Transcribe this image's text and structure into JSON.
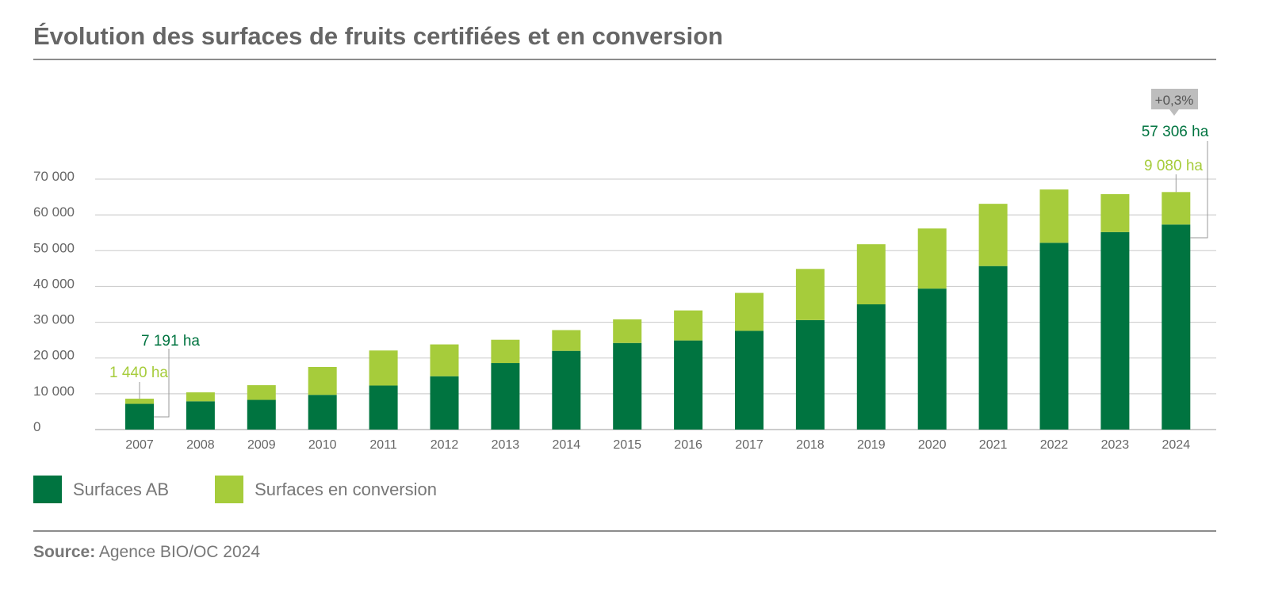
{
  "title": "Évolution des surfaces de fruits certifiées et en conversion",
  "colors": {
    "ab": "#007440",
    "conversion": "#a6cc3b",
    "grid": "#c8c8c8",
    "axis_text": "#666666",
    "badge_bg": "#bdbdbd",
    "badge_text": "#555555"
  },
  "chart_data": {
    "type": "bar",
    "stacked": true,
    "categories": [
      "2007",
      "2008",
      "2009",
      "2010",
      "2011",
      "2012",
      "2013",
      "2014",
      "2015",
      "2016",
      "2017",
      "2018",
      "2019",
      "2020",
      "2021",
      "2022",
      "2023",
      "2024"
    ],
    "series": [
      {
        "name": "Surfaces AB",
        "color": "#007440",
        "values": [
          7191,
          7900,
          8300,
          9700,
          12300,
          14900,
          18600,
          22000,
          24200,
          24900,
          27600,
          30600,
          35000,
          39400,
          45700,
          52200,
          55200,
          57306
        ]
      },
      {
        "name": "Surfaces en conversion",
        "color": "#a6cc3b",
        "values": [
          1440,
          2500,
          4100,
          7800,
          9800,
          8900,
          6500,
          5800,
          6600,
          8400,
          10600,
          14300,
          16800,
          16800,
          17400,
          14900,
          10600,
          9080
        ]
      }
    ],
    "ylim": [
      0,
      70000
    ],
    "yticks": [
      0,
      10000,
      20000,
      30000,
      40000,
      50000,
      60000,
      70000
    ],
    "ytick_labels": [
      "0",
      "10 000",
      "20 000",
      "30 000",
      "40 000",
      "50 000",
      "60 000",
      "70 000"
    ],
    "grid": true,
    "legend_position": "bottom-left",
    "annotations": {
      "first_ab": "7 191 ha",
      "first_conversion": "1 440 ha",
      "last_ab": "57 306 ha",
      "last_conversion": "9 080 ha",
      "last_change": "+0,3%"
    }
  },
  "legend": [
    {
      "label": "Surfaces AB",
      "color": "#007440"
    },
    {
      "label": "Surfaces en conversion",
      "color": "#a6cc3b"
    }
  ],
  "source": {
    "prefix": "Source:",
    "text": "Agence BIO/OC 2024"
  }
}
